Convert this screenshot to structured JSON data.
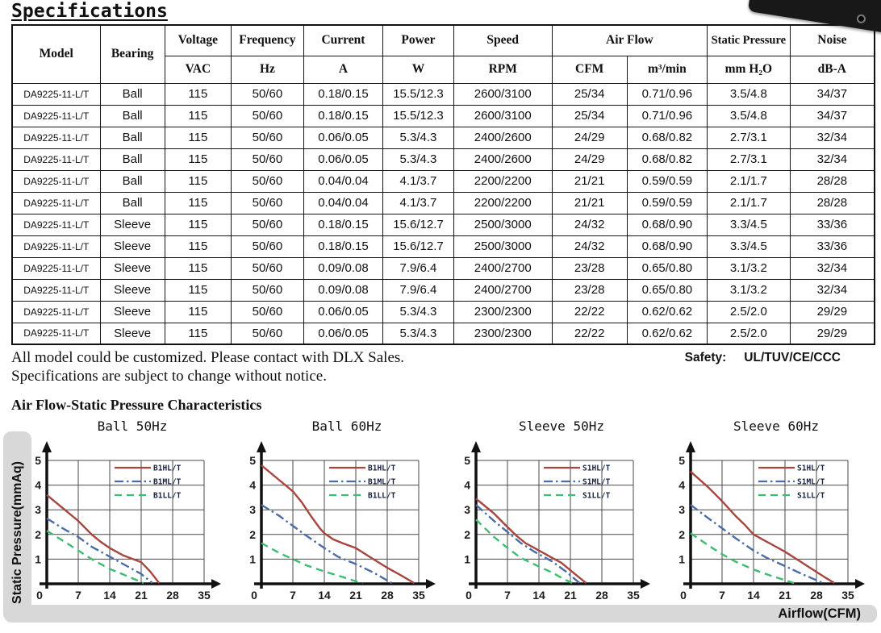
{
  "page": {
    "title": "Specifications",
    "note_line1": "All model could be customized. Please contact with DLX Sales.",
    "note_line2": "Specifications are subject to change without notice.",
    "safety_label": "Safety:",
    "safety_value": "UL/TUV/CE/CCC",
    "section2_title": "Air Flow-Static Pressure Characteristics"
  },
  "table": {
    "header": {
      "model": "Model",
      "bearing": "Bearing",
      "voltage": "Voltage",
      "frequency": "Frequency",
      "current": "Current",
      "power": "Power",
      "speed": "Speed",
      "air_flow": "Air Flow",
      "static_pressure": "Static Pressure",
      "noise": "Noise",
      "u_vac": "VAC",
      "u_hz": "Hz",
      "u_a": "A",
      "u_w": "W",
      "u_rpm": "RPM",
      "u_cfm": "CFM",
      "u_m3min": "m³/min",
      "u_mmh2o": "mm H₂O",
      "u_dba": "dB-A"
    },
    "rows": [
      [
        "DA9225-11-L/T",
        "Ball",
        "115",
        "50/60",
        "0.18/0.15",
        "15.5/12.3",
        "2600/3100",
        "25/34",
        "0.71/0.96",
        "3.5/4.8",
        "34/37"
      ],
      [
        "DA9225-11-L/T",
        "Ball",
        "115",
        "50/60",
        "0.18/0.15",
        "15.5/12.3",
        "2600/3100",
        "25/34",
        "0.71/0.96",
        "3.5/4.8",
        "34/37"
      ],
      [
        "DA9225-11-L/T",
        "Ball",
        "115",
        "50/60",
        "0.06/0.05",
        "5.3/4.3",
        "2400/2600",
        "24/29",
        "0.68/0.82",
        "2.7/3.1",
        "32/34"
      ],
      [
        "DA9225-11-L/T",
        "Ball",
        "115",
        "50/60",
        "0.06/0.05",
        "5.3/4.3",
        "2400/2600",
        "24/29",
        "0.68/0.82",
        "2.7/3.1",
        "32/34"
      ],
      [
        "DA9225-11-L/T",
        "Ball",
        "115",
        "50/60",
        "0.04/0.04",
        "4.1/3.7",
        "2200/2200",
        "21/21",
        "0.59/0.59",
        "2.1/1.7",
        "28/28"
      ],
      [
        "DA9225-11-L/T",
        "Ball",
        "115",
        "50/60",
        "0.04/0.04",
        "4.1/3.7",
        "2200/2200",
        "21/21",
        "0.59/0.59",
        "2.1/1.7",
        "28/28"
      ],
      [
        "DA9225-11-L/T",
        "Sleeve",
        "115",
        "50/60",
        "0.18/0.15",
        "15.6/12.7",
        "2500/3000",
        "24/32",
        "0.68/0.90",
        "3.3/4.5",
        "33/36"
      ],
      [
        "DA9225-11-L/T",
        "Sleeve",
        "115",
        "50/60",
        "0.18/0.15",
        "15.6/12.7",
        "2500/3000",
        "24/32",
        "0.68/0.90",
        "3.3/4.5",
        "33/36"
      ],
      [
        "DA9225-11-L/T",
        "Sleeve",
        "115",
        "50/60",
        "0.09/0.08",
        "7.9/6.4",
        "2400/2700",
        "23/28",
        "0.65/0.80",
        "3.1/3.2",
        "32/34"
      ],
      [
        "DA9225-11-L/T",
        "Sleeve",
        "115",
        "50/60",
        "0.09/0.08",
        "7.9/6.4",
        "2400/2700",
        "23/28",
        "0.65/0.80",
        "3.1/3.2",
        "32/34"
      ],
      [
        "DA9225-11-L/T",
        "Sleeve",
        "115",
        "50/60",
        "0.06/0.05",
        "5.3/4.3",
        "2300/2300",
        "22/22",
        "0.62/0.62",
        "2.5/2.0",
        "29/29"
      ],
      [
        "DA9225-11-L/T",
        "Sleeve",
        "115",
        "50/60",
        "0.06/0.05",
        "5.3/4.3",
        "2300/2300",
        "22/22",
        "0.62/0.62",
        "2.5/2.0",
        "29/29"
      ]
    ]
  },
  "chart_data": {
    "type": "line",
    "xlabel": "Airflow(CFM)",
    "ylabel": "Static Pressure(mmAq)",
    "x_ticks": [
      0,
      7,
      14,
      21,
      28,
      35
    ],
    "y_ticks": [
      0,
      1,
      2,
      3,
      4,
      5
    ],
    "xlim": [
      0,
      35
    ],
    "ylim": [
      0,
      5
    ],
    "grid": true,
    "legend_position": "top-right",
    "charts": [
      {
        "title": "Ball 50Hz",
        "series": [
          {
            "name": "B1HL/T",
            "color": "#a8453e",
            "style": "solid",
            "points": [
              [
                0,
                3.6
              ],
              [
                4,
                3.0
              ],
              [
                7,
                2.55
              ],
              [
                10,
                2.0
              ],
              [
                12,
                1.7
              ],
              [
                14,
                1.45
              ],
              [
                17,
                1.15
              ],
              [
                21,
                0.88
              ],
              [
                23,
                0.5
              ],
              [
                25,
                0.03
              ]
            ]
          },
          {
            "name": "B1ML/T",
            "color": "#4a6da7",
            "style": "dashdot",
            "points": [
              [
                0,
                2.65
              ],
              [
                4,
                2.2
              ],
              [
                7,
                1.9
              ],
              [
                10,
                1.5
              ],
              [
                14,
                1.1
              ],
              [
                17,
                0.8
              ],
              [
                21,
                0.4
              ],
              [
                23.5,
                0.03
              ]
            ]
          },
          {
            "name": "B1LL/T",
            "color": "#3cbd70",
            "style": "dashed",
            "points": [
              [
                0,
                2.15
              ],
              [
                4,
                1.7
              ],
              [
                7,
                1.35
              ],
              [
                10,
                1.0
              ],
              [
                14,
                0.6
              ],
              [
                17,
                0.38
              ],
              [
                20,
                0.15
              ],
              [
                21.5,
                0.03
              ]
            ]
          }
        ]
      },
      {
        "title": "Ball 60Hz",
        "series": [
          {
            "name": "B1HL/T",
            "color": "#a8453e",
            "style": "solid",
            "points": [
              [
                0,
                4.8
              ],
              [
                4,
                4.2
              ],
              [
                7,
                3.75
              ],
              [
                9,
                3.3
              ],
              [
                11,
                2.75
              ],
              [
                13,
                2.25
              ],
              [
                14,
                2.05
              ],
              [
                16,
                1.8
              ],
              [
                18,
                1.65
              ],
              [
                21,
                1.45
              ],
              [
                24,
                1.1
              ],
              [
                28,
                0.65
              ],
              [
                31,
                0.35
              ],
              [
                34,
                0.03
              ]
            ]
          },
          {
            "name": "B1ML/T",
            "color": "#4a6da7",
            "style": "dashdot",
            "points": [
              [
                0,
                3.2
              ],
              [
                4,
                2.75
              ],
              [
                7,
                2.35
              ],
              [
                10,
                1.95
              ],
              [
                14,
                1.45
              ],
              [
                17,
                1.1
              ],
              [
                21,
                0.8
              ],
              [
                25,
                0.45
              ],
              [
                29,
                0.03
              ]
            ]
          },
          {
            "name": "B1LL/T",
            "color": "#3cbd70",
            "style": "dashed",
            "points": [
              [
                0,
                1.65
              ],
              [
                4,
                1.25
              ],
              [
                7,
                1.0
              ],
              [
                10,
                0.75
              ],
              [
                14,
                0.5
              ],
              [
                18,
                0.28
              ],
              [
                21,
                0.1
              ],
              [
                22.5,
                0.03
              ]
            ]
          }
        ]
      },
      {
        "title": "Sleeve 50Hz",
        "series": [
          {
            "name": "S1HL/T",
            "color": "#a8453e",
            "style": "solid",
            "points": [
              [
                0,
                3.45
              ],
              [
                4,
                2.85
              ],
              [
                7,
                2.3
              ],
              [
                9,
                1.95
              ],
              [
                11,
                1.65
              ],
              [
                13,
                1.45
              ],
              [
                14,
                1.35
              ],
              [
                17,
                1.05
              ],
              [
                19,
                0.85
              ],
              [
                21,
                0.55
              ],
              [
                23,
                0.25
              ],
              [
                24.5,
                0.03
              ]
            ]
          },
          {
            "name": "S1ML/T",
            "color": "#4a6da7",
            "style": "dashdot",
            "points": [
              [
                0,
                3.2
              ],
              [
                4,
                2.55
              ],
              [
                7,
                2.1
              ],
              [
                10,
                1.65
              ],
              [
                13,
                1.3
              ],
              [
                14,
                1.2
              ],
              [
                17,
                0.9
              ],
              [
                20,
                0.5
              ],
              [
                23,
                0.04
              ]
            ]
          },
          {
            "name": "S1LL/T",
            "color": "#3cbd70",
            "style": "dashed",
            "points": [
              [
                0,
                2.6
              ],
              [
                4,
                1.9
              ],
              [
                7,
                1.45
              ],
              [
                10,
                1.05
              ],
              [
                14,
                0.7
              ],
              [
                17,
                0.45
              ],
              [
                20,
                0.15
              ],
              [
                21.5,
                0.03
              ]
            ]
          }
        ]
      },
      {
        "title": "Sleeve 60Hz",
        "series": [
          {
            "name": "S1HL/T",
            "color": "#a8453e",
            "style": "solid",
            "points": [
              [
                0,
                4.55
              ],
              [
                4,
                3.9
              ],
              [
                7,
                3.35
              ],
              [
                10,
                2.75
              ],
              [
                12,
                2.4
              ],
              [
                14,
                2.0
              ],
              [
                16,
                1.8
              ],
              [
                18,
                1.6
              ],
              [
                21,
                1.3
              ],
              [
                24,
                0.95
              ],
              [
                27,
                0.6
              ],
              [
                30,
                0.25
              ],
              [
                32,
                0.03
              ]
            ]
          },
          {
            "name": "S1ML/T",
            "color": "#4a6da7",
            "style": "dashdot",
            "points": [
              [
                0,
                3.2
              ],
              [
                4,
                2.65
              ],
              [
                7,
                2.25
              ],
              [
                10,
                1.85
              ],
              [
                14,
                1.35
              ],
              [
                17,
                1.05
              ],
              [
                21,
                0.72
              ],
              [
                25,
                0.38
              ],
              [
                29.5,
                0.03
              ]
            ]
          },
          {
            "name": "S1LL/T",
            "color": "#3cbd70",
            "style": "dashed",
            "points": [
              [
                0,
                2.05
              ],
              [
                4,
                1.55
              ],
              [
                7,
                1.2
              ],
              [
                10,
                0.9
              ],
              [
                14,
                0.58
              ],
              [
                18,
                0.32
              ],
              [
                21,
                0.15
              ],
              [
                23,
                0.03
              ]
            ]
          }
        ]
      }
    ]
  },
  "colors": {
    "series_high": "#a8453e",
    "series_mid": "#4a6da7",
    "series_low": "#3cbd70",
    "label_strip": "#d8d8d8",
    "grid": "#4a4a4a",
    "axis": "#111111"
  }
}
